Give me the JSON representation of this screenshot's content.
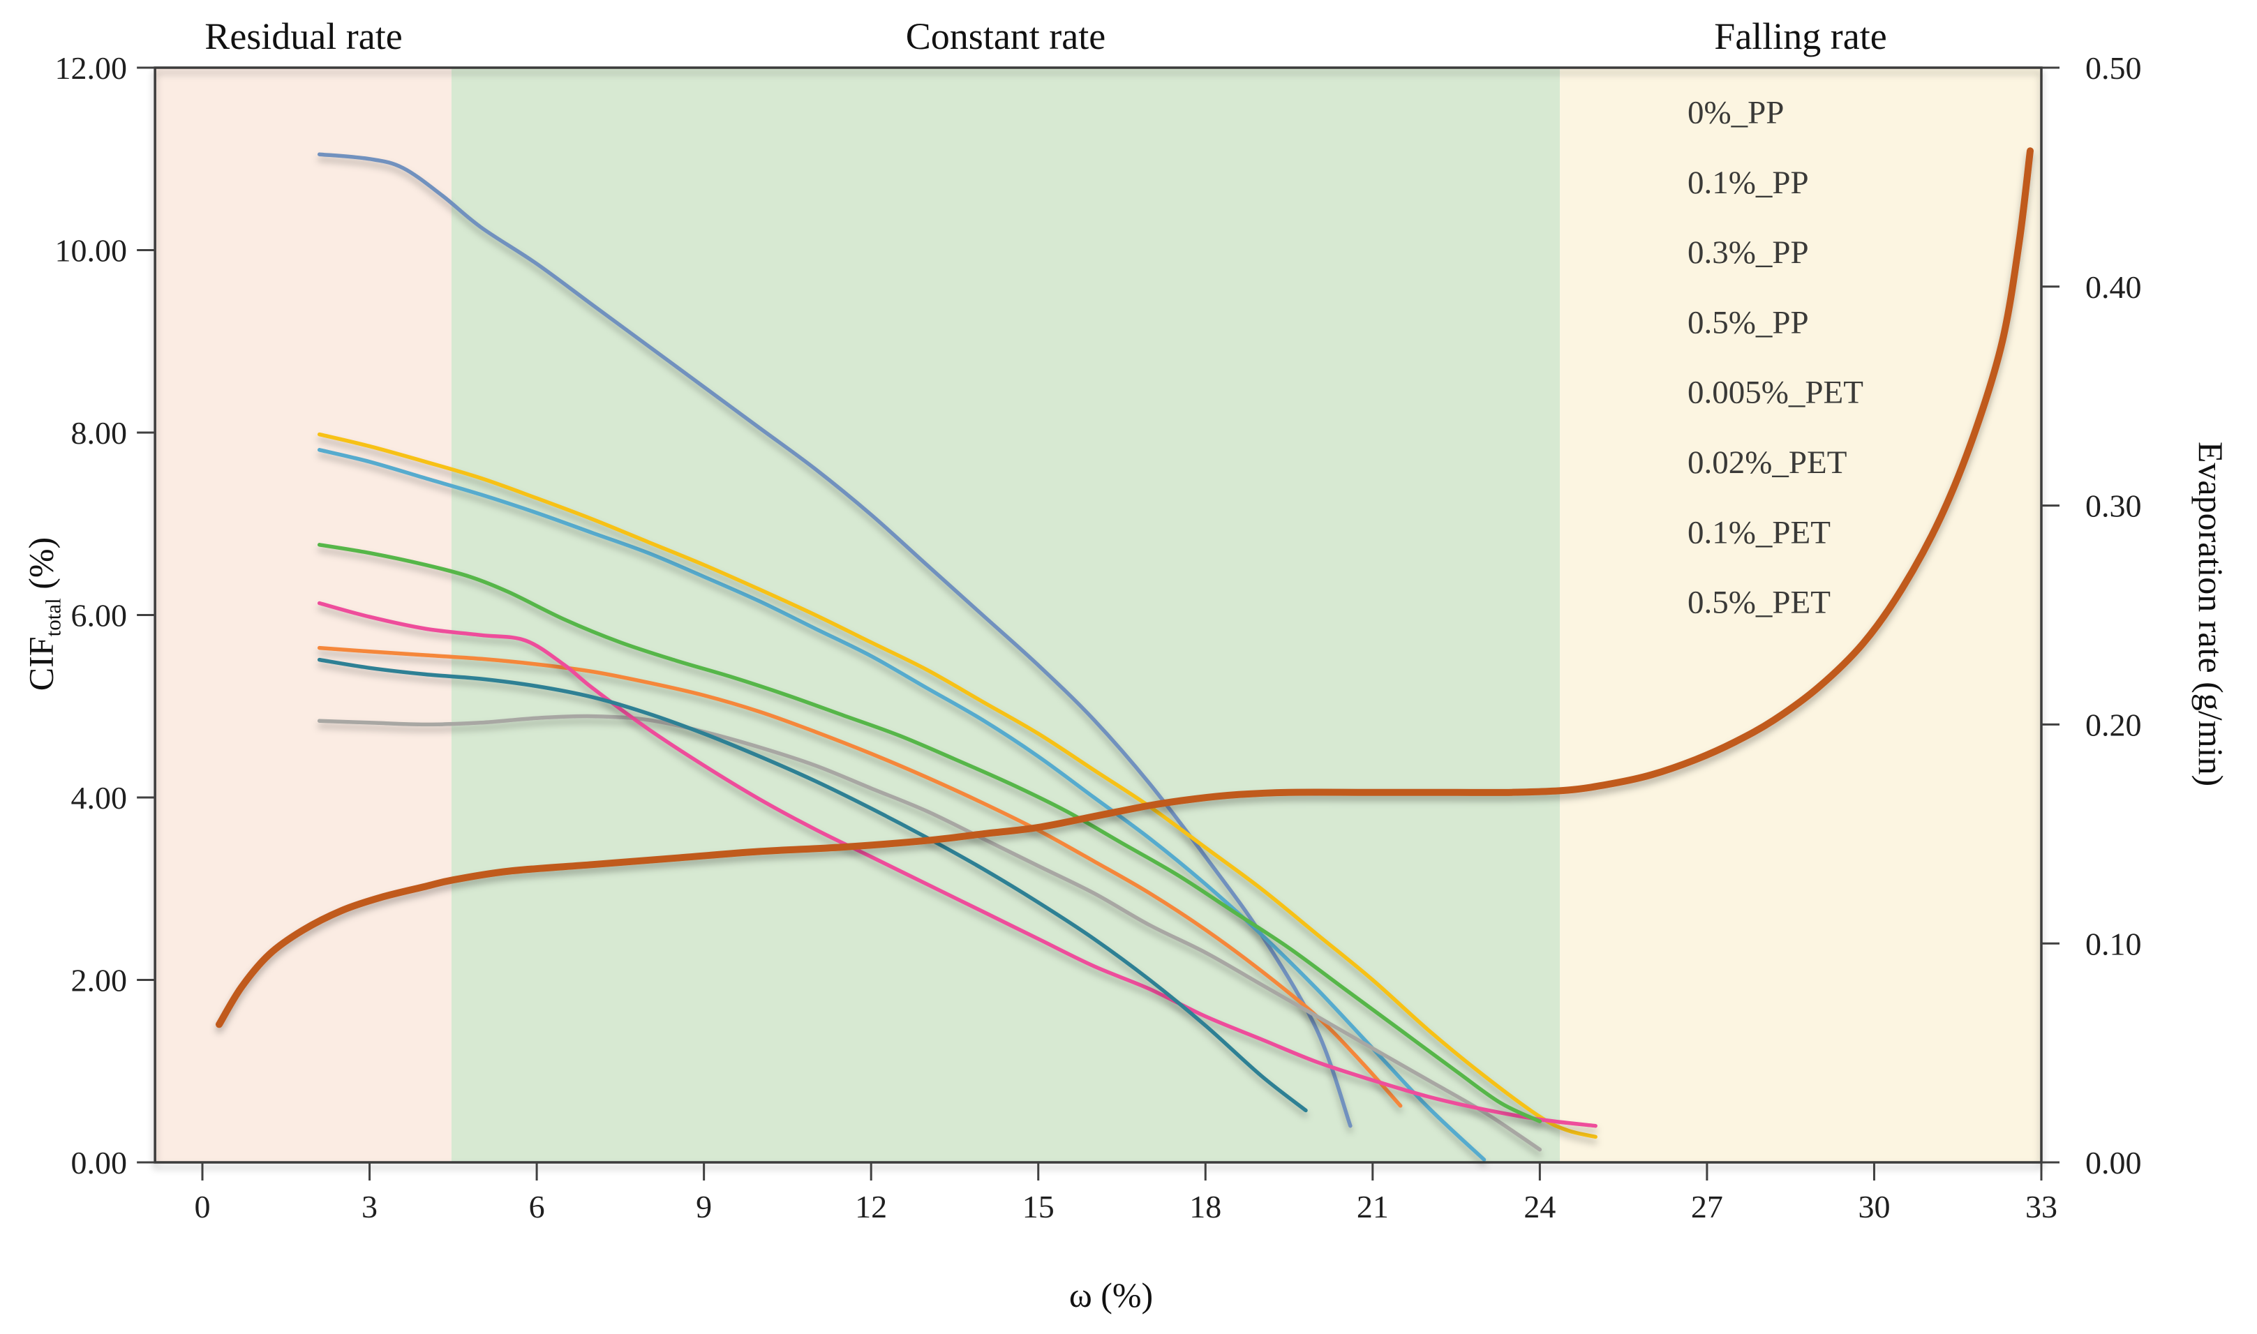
{
  "chart_data": {
    "type": "line",
    "title": "",
    "x_axis": {
      "title": "ω (%)",
      "ticks": [
        0,
        3,
        6,
        9,
        12,
        15,
        18,
        21,
        24,
        27,
        30,
        33
      ],
      "range_min": -0.85,
      "range_max": 33,
      "decimals": 0
    },
    "y_axis_left": {
      "title_prefix": "CIF",
      "title_sub": "total",
      "title_suffix": " (%)",
      "ticks": [
        12,
        10,
        8,
        6,
        4,
        2,
        0
      ],
      "range": [
        0,
        12
      ],
      "decimals": 2
    },
    "y_axis_right": {
      "title": "Evaporation rate (g/min)",
      "ticks": [
        0.5,
        0.4,
        0.3,
        0.2,
        0.1,
        0
      ],
      "range": [
        0,
        0.5
      ],
      "decimals": 2
    },
    "regions": [
      {
        "label": "Residual rate",
        "color": "#FBECE3",
        "x_start": -0.85,
        "x_end": 4.47
      },
      {
        "label": "Constant rate",
        "color": "#D7E9D2",
        "x_start": 4.47,
        "x_end": 24.36
      },
      {
        "label": "Falling rate",
        "color": "#FCF5E1",
        "x_start": 24.36,
        "x_end": 33
      }
    ],
    "series": [
      {
        "name": "0%_PP",
        "color": "#7191BE",
        "axis": "left",
        "in_legend": true,
        "points": [
          [
            2.1,
            11.05
          ],
          [
            3,
            11.0
          ],
          [
            3.6,
            10.9
          ],
          [
            4.3,
            10.6
          ],
          [
            5,
            10.25
          ],
          [
            6,
            9.85
          ],
          [
            7,
            9.4
          ],
          [
            8,
            8.95
          ],
          [
            9,
            8.5
          ],
          [
            10,
            8.05
          ],
          [
            11,
            7.6
          ],
          [
            12,
            7.1
          ],
          [
            13,
            6.55
          ],
          [
            14,
            6.0
          ],
          [
            15,
            5.45
          ],
          [
            16,
            4.85
          ],
          [
            17,
            4.15
          ],
          [
            18,
            3.35
          ],
          [
            19,
            2.5
          ],
          [
            20,
            1.45
          ],
          [
            20.6,
            0.4
          ]
        ]
      },
      {
        "name": "0.1%_PP",
        "color": "#56ABCE",
        "axis": "left",
        "in_legend": true,
        "points": [
          [
            2.1,
            7.81
          ],
          [
            3,
            7.68
          ],
          [
            4,
            7.5
          ],
          [
            5,
            7.32
          ],
          [
            6,
            7.12
          ],
          [
            7,
            6.9
          ],
          [
            8,
            6.68
          ],
          [
            9,
            6.42
          ],
          [
            10,
            6.15
          ],
          [
            11,
            5.85
          ],
          [
            12,
            5.55
          ],
          [
            13,
            5.2
          ],
          [
            14,
            4.85
          ],
          [
            15,
            4.45
          ],
          [
            16,
            4.0
          ],
          [
            17,
            3.55
          ],
          [
            18,
            3.05
          ],
          [
            19,
            2.5
          ],
          [
            20,
            1.9
          ],
          [
            21,
            1.25
          ],
          [
            22,
            0.6
          ],
          [
            23,
            0.03
          ]
        ]
      },
      {
        "name": "0.3%_PP",
        "color": "#F5873A",
        "axis": "left",
        "in_legend": true,
        "points": [
          [
            2.1,
            5.64
          ],
          [
            3,
            5.6
          ],
          [
            4,
            5.56
          ],
          [
            5,
            5.52
          ],
          [
            6,
            5.46
          ],
          [
            7,
            5.38
          ],
          [
            8,
            5.26
          ],
          [
            9,
            5.12
          ],
          [
            10,
            4.94
          ],
          [
            11,
            4.72
          ],
          [
            12,
            4.48
          ],
          [
            13,
            4.22
          ],
          [
            14,
            3.94
          ],
          [
            15,
            3.64
          ],
          [
            16,
            3.3
          ],
          [
            17,
            2.95
          ],
          [
            18,
            2.55
          ],
          [
            19,
            2.1
          ],
          [
            20,
            1.6
          ],
          [
            20.8,
            1.1
          ],
          [
            21.5,
            0.62
          ]
        ]
      },
      {
        "name": "0.5%_PP",
        "color": "#A8A7A3",
        "axis": "left",
        "in_legend": true,
        "points": [
          [
            2.1,
            4.84
          ],
          [
            3,
            4.82
          ],
          [
            4,
            4.8
          ],
          [
            5,
            4.82
          ],
          [
            6,
            4.87
          ],
          [
            7,
            4.89
          ],
          [
            8,
            4.85
          ],
          [
            9,
            4.72
          ],
          [
            10,
            4.55
          ],
          [
            11,
            4.35
          ],
          [
            12,
            4.1
          ],
          [
            13,
            3.85
          ],
          [
            14,
            3.55
          ],
          [
            15,
            3.25
          ],
          [
            16,
            2.95
          ],
          [
            17,
            2.6
          ],
          [
            18,
            2.3
          ],
          [
            19,
            1.95
          ],
          [
            20,
            1.6
          ],
          [
            21,
            1.25
          ],
          [
            22,
            0.9
          ],
          [
            23,
            0.55
          ],
          [
            24,
            0.14
          ]
        ]
      },
      {
        "name": "0.005%_PET",
        "color": "#F7C112",
        "axis": "left",
        "in_legend": true,
        "points": [
          [
            2.1,
            7.98
          ],
          [
            3,
            7.85
          ],
          [
            4,
            7.68
          ],
          [
            5,
            7.5
          ],
          [
            6,
            7.28
          ],
          [
            7,
            7.05
          ],
          [
            8,
            6.8
          ],
          [
            9,
            6.55
          ],
          [
            10,
            6.28
          ],
          [
            11,
            6.0
          ],
          [
            12,
            5.7
          ],
          [
            13,
            5.4
          ],
          [
            14,
            5.05
          ],
          [
            15,
            4.7
          ],
          [
            16,
            4.3
          ],
          [
            17,
            3.9
          ],
          [
            18,
            3.45
          ],
          [
            19,
            3.0
          ],
          [
            20,
            2.5
          ],
          [
            21,
            2.0
          ],
          [
            22,
            1.45
          ],
          [
            23,
            0.95
          ],
          [
            24,
            0.5
          ],
          [
            24.5,
            0.35
          ],
          [
            25,
            0.28
          ]
        ]
      },
      {
        "name": "0.02%_PET",
        "color": "#EE4E9B",
        "axis": "left",
        "in_legend": true,
        "points": [
          [
            2.1,
            6.13
          ],
          [
            3,
            5.98
          ],
          [
            4,
            5.85
          ],
          [
            5,
            5.78
          ],
          [
            5.8,
            5.72
          ],
          [
            6.5,
            5.45
          ],
          [
            7,
            5.2
          ],
          [
            8,
            4.75
          ],
          [
            9,
            4.35
          ],
          [
            10,
            3.98
          ],
          [
            11,
            3.65
          ],
          [
            12,
            3.35
          ],
          [
            13,
            3.05
          ],
          [
            14,
            2.75
          ],
          [
            15,
            2.45
          ],
          [
            16,
            2.15
          ],
          [
            17,
            1.9
          ],
          [
            18,
            1.6
          ],
          [
            19,
            1.35
          ],
          [
            20,
            1.1
          ],
          [
            21,
            0.9
          ],
          [
            22,
            0.72
          ],
          [
            23,
            0.58
          ],
          [
            24,
            0.47
          ],
          [
            25,
            0.4
          ]
        ]
      },
      {
        "name": "0.1%_PET",
        "color": "#57B648",
        "axis": "left",
        "in_legend": true,
        "points": [
          [
            2.1,
            6.77
          ],
          [
            3,
            6.68
          ],
          [
            4,
            6.55
          ],
          [
            4.8,
            6.42
          ],
          [
            5.5,
            6.25
          ],
          [
            6.5,
            5.95
          ],
          [
            7.5,
            5.7
          ],
          [
            8.5,
            5.5
          ],
          [
            9.5,
            5.32
          ],
          [
            10.5,
            5.12
          ],
          [
            11.5,
            4.9
          ],
          [
            12.5,
            4.68
          ],
          [
            13.5,
            4.42
          ],
          [
            14.5,
            4.15
          ],
          [
            15.5,
            3.85
          ],
          [
            16.5,
            3.5
          ],
          [
            17.5,
            3.15
          ],
          [
            18.5,
            2.75
          ],
          [
            19.5,
            2.35
          ],
          [
            20.5,
            1.9
          ],
          [
            21.5,
            1.45
          ],
          [
            22.5,
            1.0
          ],
          [
            23.3,
            0.65
          ],
          [
            24,
            0.45
          ]
        ]
      },
      {
        "name": "0.5%_PET",
        "color": "#2F8094",
        "axis": "left",
        "in_legend": true,
        "points": [
          [
            2.1,
            5.51
          ],
          [
            3,
            5.42
          ],
          [
            4,
            5.35
          ],
          [
            5,
            5.3
          ],
          [
            6,
            5.22
          ],
          [
            7,
            5.1
          ],
          [
            8,
            4.92
          ],
          [
            9,
            4.7
          ],
          [
            10,
            4.45
          ],
          [
            11,
            4.18
          ],
          [
            12,
            3.88
          ],
          [
            13,
            3.56
          ],
          [
            14,
            3.22
          ],
          [
            15,
            2.85
          ],
          [
            16,
            2.45
          ],
          [
            17,
            2.0
          ],
          [
            18,
            1.5
          ],
          [
            19,
            0.95
          ],
          [
            19.8,
            0.57
          ]
        ]
      },
      {
        "name": "Evaporation rate",
        "color": "#C05A1E",
        "axis": "right",
        "in_legend": false,
        "points": [
          [
            0.3,
            0.063
          ],
          [
            0.7,
            0.08
          ],
          [
            1.2,
            0.095
          ],
          [
            1.8,
            0.106
          ],
          [
            2.5,
            0.115
          ],
          [
            3.2,
            0.121
          ],
          [
            4,
            0.126
          ],
          [
            4.5,
            0.129
          ],
          [
            5.5,
            0.133
          ],
          [
            7,
            0.136
          ],
          [
            8.5,
            0.139
          ],
          [
            10,
            0.142
          ],
          [
            11.5,
            0.144
          ],
          [
            13,
            0.147
          ],
          [
            14,
            0.15
          ],
          [
            15,
            0.153
          ],
          [
            16,
            0.158
          ],
          [
            17,
            0.163
          ],
          [
            17.8,
            0.166
          ],
          [
            18.6,
            0.168
          ],
          [
            19.5,
            0.169
          ],
          [
            21,
            0.169
          ],
          [
            22.5,
            0.169
          ],
          [
            23.5,
            0.169
          ],
          [
            24.5,
            0.17
          ],
          [
            25.3,
            0.173
          ],
          [
            26,
            0.177
          ],
          [
            26.8,
            0.184
          ],
          [
            27.5,
            0.192
          ],
          [
            28.2,
            0.202
          ],
          [
            29,
            0.217
          ],
          [
            29.8,
            0.237
          ],
          [
            30.5,
            0.262
          ],
          [
            31.2,
            0.295
          ],
          [
            31.8,
            0.333
          ],
          [
            32.3,
            0.375
          ],
          [
            32.6,
            0.42
          ],
          [
            32.8,
            0.462
          ]
        ]
      }
    ],
    "legend_position": "upper-right-inside"
  },
  "legend": {
    "labels": [
      "0%_PP",
      "0.1%_PP",
      "0.3%_PP",
      "0.5%_PP",
      "0.005%_PET",
      "0.02%_PET",
      "0.1%_PET",
      "0.5%_PET"
    ]
  },
  "colors": {
    "plot_border": "#3a3a3a",
    "tick": "#404040",
    "tick_text": "#1f1f1f",
    "legend_text": "#3a3a38"
  }
}
